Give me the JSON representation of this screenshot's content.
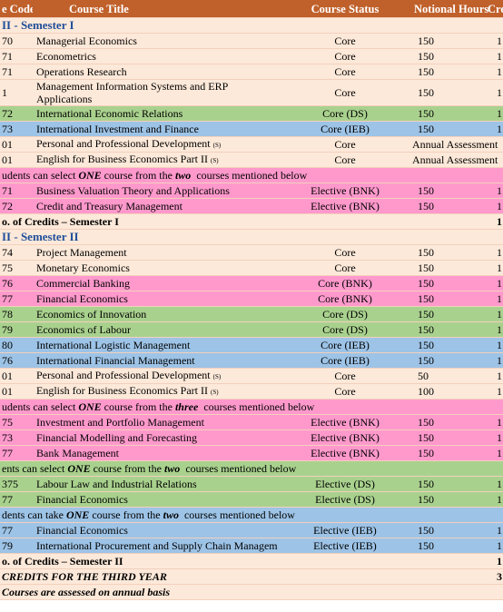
{
  "header": {
    "code": "e Code",
    "title": "Course Title",
    "status": "Course Status",
    "hours": "Notional Hours",
    "credit": "Credit"
  },
  "rows": [
    {
      "kind": "section",
      "text": "II - Semester I",
      "color": "#fde9d9"
    },
    {
      "kind": "course",
      "color": "#fde9d9",
      "code": "70",
      "title": "Managerial Economics",
      "status": "Core",
      "hours": "150",
      "credit": "1"
    },
    {
      "kind": "course",
      "color": "#fde9d9",
      "code": "71",
      "title": "Econometrics",
      "status": "Core",
      "hours": "150",
      "credit": "1"
    },
    {
      "kind": "course",
      "color": "#fde9d9",
      "code": "71",
      "title": "Operations Research",
      "status": "Core",
      "hours": "150",
      "credit": "1"
    },
    {
      "kind": "course",
      "color": "#fde9d9",
      "code": "1",
      "title": "Management Information Systems and ERP Applications",
      "status": "Core",
      "hours": "150",
      "credit": "1",
      "wrap": true
    },
    {
      "kind": "course",
      "color": "#a9d18e",
      "code": "72",
      "title": "International Economic Relations",
      "status": "Core (DS)",
      "hours": "150",
      "credit": "1"
    },
    {
      "kind": "course",
      "color": "#9dc3e6",
      "code": "73",
      "title": "International Investment and Finance",
      "status": "Core (IEB)",
      "hours": "150",
      "credit": "1"
    },
    {
      "kind": "assess",
      "color": "#fde9d9",
      "code": "01",
      "title": "Personal and Professional Development",
      "mark": "(S)",
      "status": "Core",
      "hours": "Annual Assessment"
    },
    {
      "kind": "assess",
      "color": "#fde9d9",
      "code": "01",
      "title": "English for Business Economics Part II",
      "mark": "(S)",
      "status": "Core",
      "hours": "Annual Assessment"
    },
    {
      "kind": "note",
      "color": "#ff99cc",
      "pre": "udents can select ",
      "em1": "ONE",
      "mid": " course from the ",
      "em2": "two",
      "post": "  courses mentioned below"
    },
    {
      "kind": "course",
      "color": "#ff99cc",
      "code": "71",
      "title": "Business Valuation Theory and Applications",
      "status": "Elective (BNK)",
      "hours": "150",
      "credit": "1"
    },
    {
      "kind": "course",
      "color": "#ff99cc",
      "code": "72",
      "title": "Credit and Treasury Management",
      "status": "Elective (BNK)",
      "hours": "150",
      "credit": "1"
    },
    {
      "kind": "total",
      "color": "#fde9d9",
      "text": "o. of Credits – Semester I",
      "credit": "1"
    },
    {
      "kind": "section",
      "text": "II - Semester II",
      "color": "#fde9d9"
    },
    {
      "kind": "course",
      "color": "#fde9d9",
      "code": "74",
      "title": "Project Management",
      "status": "Core",
      "hours": "150",
      "credit": "1"
    },
    {
      "kind": "course",
      "color": "#fde9d9",
      "code": "75",
      "title": "Monetary Economics",
      "status": "Core",
      "hours": "150",
      "credit": "1"
    },
    {
      "kind": "course",
      "color": "#ff99cc",
      "code": "76",
      "title": "Commercial Banking",
      "status": "Core (BNK)",
      "hours": "150",
      "credit": "1"
    },
    {
      "kind": "course",
      "color": "#ff99cc",
      "code": "77",
      "title": "Financial Economics",
      "status": "Core (BNK)",
      "hours": "150",
      "credit": "1"
    },
    {
      "kind": "course",
      "color": "#a9d18e",
      "code": "78",
      "title": "Economics of Innovation",
      "status": "Core (DS)",
      "hours": "150",
      "credit": "1"
    },
    {
      "kind": "course",
      "color": "#a9d18e",
      "code": "79",
      "title": "Economics of Labour",
      "status": "Core (DS)",
      "hours": "150",
      "credit": "1"
    },
    {
      "kind": "course",
      "color": "#9dc3e6",
      "code": "80",
      "title": "International Logistic Management",
      "status": "Core (IEB)",
      "hours": "150",
      "credit": "1"
    },
    {
      "kind": "course",
      "color": "#9dc3e6",
      "code": "76",
      "title": "International Financial Management",
      "status": "Core (IEB)",
      "hours": "150",
      "credit": "1"
    },
    {
      "kind": "course",
      "color": "#fde9d9",
      "code": "01",
      "title": "Personal and Professional Development",
      "mark": "(S)",
      "status": "Core",
      "hours": "50",
      "credit": "1"
    },
    {
      "kind": "course",
      "color": "#fde9d9",
      "code": "01",
      "title": "English for Business Economics Part II",
      "mark": "(S)",
      "status": "Core",
      "hours": "100",
      "credit": "1"
    },
    {
      "kind": "note",
      "color": "#ff99cc",
      "pre": "udents can select ",
      "em1": "ONE",
      "mid": " course from the ",
      "em2": "three",
      "post": "  courses mentioned below"
    },
    {
      "kind": "course",
      "color": "#ff99cc",
      "code": "75",
      "title": "Investment and Portfolio Management",
      "status": "Elective (BNK)",
      "hours": "150",
      "credit": "1"
    },
    {
      "kind": "course",
      "color": "#ff99cc",
      "code": "73",
      "title": "Financial Modelling and Forecasting",
      "status": "Elective (BNK)",
      "hours": "150",
      "credit": "1"
    },
    {
      "kind": "course",
      "color": "#ff99cc",
      "code": "77",
      "title": "Bank Management",
      "status": "Elective (BNK)",
      "hours": "150",
      "credit": "1"
    },
    {
      "kind": "note",
      "color": "#a9d18e",
      "pre": "ents can select ",
      "em1": "ONE",
      "mid": " course from the ",
      "em2": "two",
      "post": "  courses mentioned below"
    },
    {
      "kind": "course",
      "color": "#a9d18e",
      "code": "375",
      "title": "Labour Law and Industrial Relations",
      "status": "Elective (DS)",
      "hours": "150",
      "credit": "1"
    },
    {
      "kind": "course",
      "color": "#a9d18e",
      "code": "77",
      "title": "Financial Economics",
      "status": "Elective (DS)",
      "hours": "150",
      "credit": "1"
    },
    {
      "kind": "note",
      "color": "#9dc3e6",
      "pre": "dents can take ",
      "em1": "ONE",
      "mid": " course from the ",
      "em2": "two",
      "post": "  courses mentioned below"
    },
    {
      "kind": "course",
      "color": "#9dc3e6",
      "code": "77",
      "title": "Financial Economics",
      "status": "Elective (IEB)",
      "hours": "150",
      "credit": "1"
    },
    {
      "kind": "course",
      "color": "#9dc3e6",
      "code": "79",
      "title": "International Procurement and Supply Chain Management",
      "status": "Elective (IEB)",
      "hours": "150",
      "credit": "1"
    },
    {
      "kind": "total",
      "color": "#fde9d9",
      "text": "o. of Credits – Semester II",
      "credit": "1"
    },
    {
      "kind": "grand",
      "color": "#fde9d9",
      "text": "CREDITS FOR THE THIRD YEAR",
      "credit": "3"
    },
    {
      "kind": "foot",
      "color": "#fde9d9",
      "text": "Courses are assessed on annual basis"
    }
  ]
}
